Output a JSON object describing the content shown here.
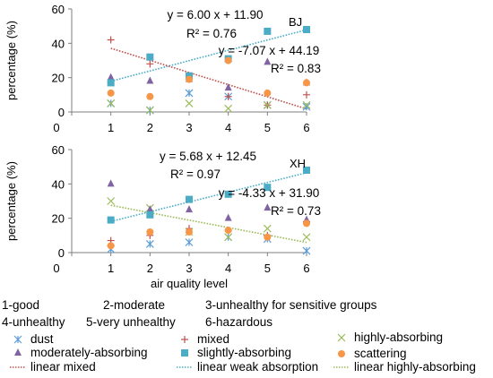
{
  "chart_data": [
    {
      "type": "scatter",
      "station": "BJ",
      "ylabel": "percentage (%)",
      "xlim": [
        0,
        6
      ],
      "ylim": [
        0,
        60
      ],
      "x_ticks": [
        0,
        1,
        2,
        3,
        4,
        5,
        6
      ],
      "y_ticks": [
        0,
        20,
        40,
        60
      ],
      "series": [
        {
          "name": "dust",
          "x": [
            1,
            2,
            3,
            4,
            5,
            6
          ],
          "values": [
            5,
            1,
            11,
            9,
            4,
            3
          ]
        },
        {
          "name": "mixed",
          "x": [
            1,
            2,
            3,
            4,
            5,
            6
          ],
          "values": [
            42,
            28,
            21,
            9,
            4,
            10
          ]
        },
        {
          "name": "highly-absorbing",
          "x": [
            1,
            2,
            3,
            4,
            5,
            6
          ],
          "values": [
            5,
            1,
            5,
            2,
            4,
            4
          ]
        },
        {
          "name": "moderately-absorbing",
          "x": [
            1,
            2,
            3,
            4,
            5,
            6
          ],
          "values": [
            20,
            18,
            19,
            14,
            29,
            17
          ]
        },
        {
          "name": "slightly-absorbing",
          "x": [
            1,
            2,
            3,
            4,
            5,
            6
          ],
          "values": [
            17,
            32,
            21,
            31,
            47,
            48
          ]
        },
        {
          "name": "scattering",
          "x": [
            1,
            2,
            3,
            4,
            5,
            6
          ],
          "values": [
            11,
            9,
            19,
            30,
            11,
            17
          ]
        }
      ],
      "trendlines": [
        {
          "name": "linear weak absorption",
          "slope": 6.0,
          "intercept": 11.9
        },
        {
          "name": "linear mixed",
          "slope": -7.07,
          "intercept": 44.19
        }
      ],
      "annotations": [
        {
          "equation": "y = 6.00 x + 11.90",
          "r2": "R² = 0.76"
        },
        {
          "equation": "y = -7.07 x + 44.19",
          "r2": "R² = 0.83"
        }
      ]
    },
    {
      "type": "scatter",
      "station": "XH",
      "ylabel": "percentage (%)",
      "xlabel": "air quality level",
      "xlim": [
        0,
        6
      ],
      "ylim": [
        0,
        60
      ],
      "x_ticks": [
        0,
        1,
        2,
        3,
        4,
        5,
        6
      ],
      "y_ticks": [
        0,
        20,
        40,
        60
      ],
      "series": [
        {
          "name": "dust",
          "x": [
            1,
            2,
            3,
            4,
            5,
            6
          ],
          "values": [
            2,
            5,
            6,
            9,
            8,
            1
          ]
        },
        {
          "name": "mixed",
          "x": [
            1,
            2,
            3,
            4,
            5,
            6
          ],
          "values": [
            7,
            10,
            14,
            13,
            10,
            18
          ]
        },
        {
          "name": "highly-absorbing",
          "x": [
            1,
            2,
            3,
            4,
            5,
            6
          ],
          "values": [
            30,
            26,
            12,
            9,
            14,
            9
          ]
        },
        {
          "name": "moderately-absorbing",
          "x": [
            1,
            2,
            3,
            4,
            5,
            6
          ],
          "values": [
            40,
            25,
            25,
            20,
            26,
            19
          ]
        },
        {
          "name": "slightly-absorbing",
          "x": [
            1,
            2,
            3,
            4,
            5,
            6
          ],
          "values": [
            19,
            22,
            31,
            34,
            38,
            48
          ]
        },
        {
          "name": "scattering",
          "x": [
            1,
            2,
            3,
            4,
            5,
            6
          ],
          "values": [
            4,
            12,
            12,
            13,
            9,
            17
          ]
        }
      ],
      "trendlines": [
        {
          "name": "linear weak absorption",
          "slope": 5.68,
          "intercept": 12.45
        },
        {
          "name": "linear highly-absorbing",
          "slope": -4.33,
          "intercept": 31.9
        }
      ],
      "annotations": [
        {
          "equation": "y = 5.68 x + 12.45",
          "r2": "R² = 0.97"
        },
        {
          "equation": "y = -4.33 x + 31.90",
          "r2": "R² = 0.73"
        }
      ]
    }
  ],
  "colors": {
    "dust": "#5b9bd5",
    "mixed": "#c0504d",
    "highly-absorbing": "#9bbb59",
    "moderately-absorbing": "#8064a2",
    "slightly-absorbing": "#4bacc6",
    "scattering": "#f79646",
    "linear mixed": "#c0504d",
    "linear weak absorption": "#4bacc6",
    "linear highly-absorbing": "#9bbb59"
  },
  "level_legend": [
    "1-good",
    "2-moderate",
    "3-unhealthy for sensitive groups",
    "4-unhealthy",
    "5-very unhealthy",
    "6-hazardous"
  ],
  "series_legend": [
    {
      "label": "dust",
      "marker": "asterisk"
    },
    {
      "label": "mixed",
      "marker": "plus"
    },
    {
      "label": "highly-absorbing",
      "marker": "x"
    },
    {
      "label": "moderately-absorbing",
      "marker": "triangle"
    },
    {
      "label": "slightly-absorbing",
      "marker": "square"
    },
    {
      "label": "scattering",
      "marker": "circle"
    },
    {
      "label": "linear mixed",
      "marker": "line"
    },
    {
      "label": "linear weak absorption",
      "marker": "line"
    },
    {
      "label": "linear highly-absorbing",
      "marker": "line"
    }
  ]
}
